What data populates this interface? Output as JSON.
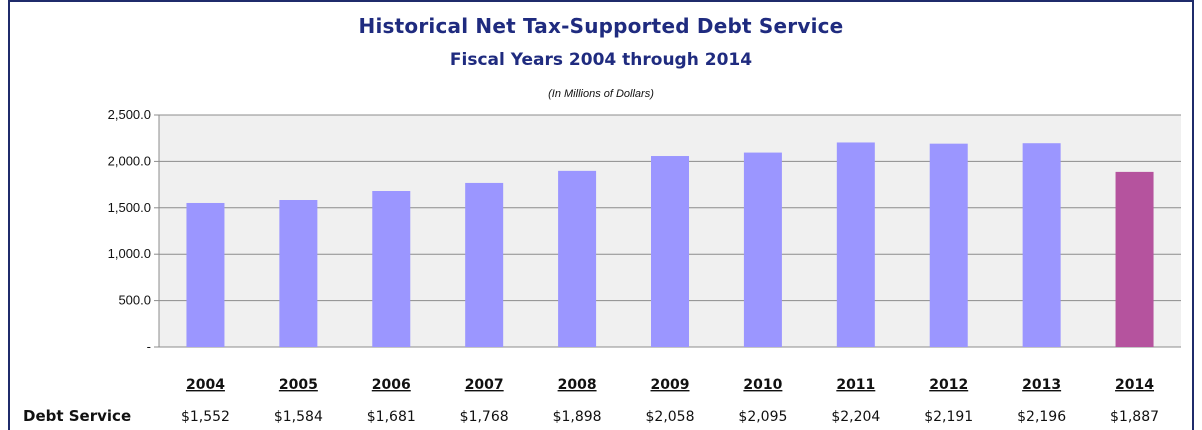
{
  "title": "Historical Net Tax-Supported Debt Service",
  "subtitle": "Fiscal Years 2004 through 2014",
  "units_note": "(In Millions of Dollars)",
  "chart_data": {
    "type": "bar",
    "categories": [
      "2004",
      "2005",
      "2006",
      "2007",
      "2008",
      "2009",
      "2010",
      "2011",
      "2012",
      "2013",
      "2014"
    ],
    "values": [
      1552,
      1584,
      1681,
      1768,
      1898,
      2058,
      2095,
      2204,
      2191,
      2196,
      1887
    ],
    "title": "Historical Net Tax-Supported Debt Service",
    "subtitle": "Fiscal Years 2004 through 2014",
    "ylim": [
      0,
      2500
    ],
    "y_ticks": [
      "-",
      "500.0",
      "1,000.0",
      "1,500.0",
      "2,000.0",
      "2,500.0"
    ],
    "grid": true,
    "colors": {
      "bar": "#9b96ff",
      "highlight": "#b5539e",
      "plot_bg": "#f0f0f0",
      "grid": "#8c8c8c"
    },
    "highlight_index": 10,
    "table": {
      "row_label": "Debt Service",
      "values": [
        "$1,552",
        "$1,584",
        "$1,681",
        "$1,768",
        "$1,898",
        "$2,058",
        "$2,095",
        "$2,204",
        "$2,191",
        "$2,196",
        "$1,887"
      ]
    }
  }
}
